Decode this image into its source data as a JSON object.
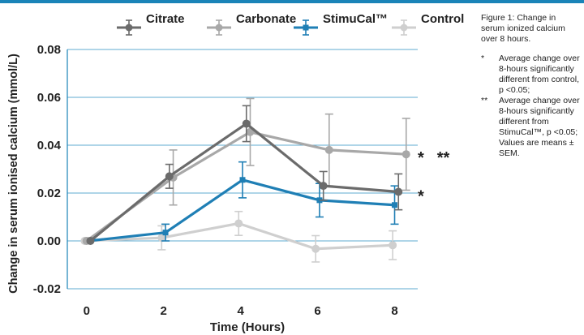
{
  "chart_data": {
    "type": "line",
    "title": "",
    "xlabel": "Time (Hours)",
    "ylabel": "Change in serum ionised calcium (mmol/L)",
    "x": [
      0,
      2,
      4,
      6,
      8
    ],
    "xticks": [
      "0",
      "2",
      "4",
      "6",
      "8"
    ],
    "yticks": [
      "-0.02",
      "0.00",
      "0.02",
      "0.04",
      "0.06",
      "0.08"
    ],
    "xlim": [
      -0.5,
      8.6
    ],
    "ylim": [
      -0.02,
      0.08
    ],
    "grid": true,
    "legend_position": "top",
    "series": [
      {
        "name": "Citrate",
        "color": "#6b6b6b",
        "x": [
          0.1,
          2.15,
          4.15,
          6.15,
          8.1
        ],
        "values": [
          0.0,
          0.027,
          0.049,
          0.023,
          0.0205
        ],
        "err": [
          0.0,
          0.005,
          0.0075,
          0.006,
          0.0075
        ]
      },
      {
        "name": "Carbonate",
        "color": "#a8a8a8",
        "x": [
          0.0,
          2.25,
          4.25,
          6.3,
          8.3
        ],
        "values": [
          0.0,
          0.0265,
          0.0455,
          0.038,
          0.0362
        ],
        "err": [
          0.0,
          0.0115,
          0.014,
          0.015,
          0.015
        ]
      },
      {
        "name": "StimuCal™",
        "color": "#1f7fb5",
        "x": [
          0.05,
          2.05,
          4.05,
          6.05,
          8.0
        ],
        "values": [
          0.0,
          0.0035,
          0.0255,
          0.017,
          0.015
        ],
        "err": [
          0.0,
          0.0035,
          0.0075,
          0.007,
          0.008
        ]
      },
      {
        "name": "Control",
        "color": "#cfcfcf",
        "x": [
          -0.05,
          1.95,
          3.95,
          5.95,
          7.95
        ],
        "values": [
          0.0,
          0.0013,
          0.0073,
          -0.0033,
          -0.0018
        ],
        "err": [
          0.0,
          0.005,
          0.005,
          0.0055,
          0.006
        ]
      }
    ],
    "annotations": [
      {
        "text": "*",
        "x": 8.6,
        "y": 0.036
      },
      {
        "text": "**",
        "x": 9.1,
        "y": 0.036
      },
      {
        "text": "*",
        "x": 8.6,
        "y": 0.0198
      }
    ]
  },
  "caption": {
    "title": "Figure 1: Change in serum ionized calcium over 8 hours.",
    "notes": [
      {
        "symbol": "*",
        "text": "Average change over 8-hours significantly different from control, p <0.05;"
      },
      {
        "symbol": "**",
        "text": "Average change over 8-hours significantly different from StimuCal™, p <0.05; Values are means ± SEM."
      }
    ]
  }
}
